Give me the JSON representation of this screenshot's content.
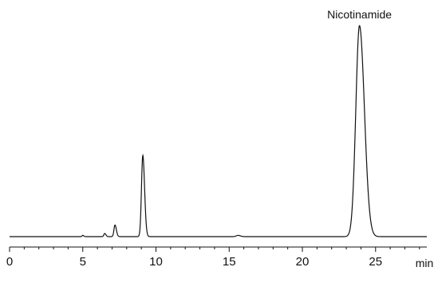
{
  "chart_data": {
    "type": "line",
    "title": "",
    "xlabel": "min",
    "ylabel": "",
    "xlim": [
      0,
      28.5
    ],
    "ylim": [
      0,
      1
    ],
    "grid": false,
    "x_ticks": [
      0,
      5,
      10,
      15,
      20,
      25
    ],
    "x_minor_step": 1,
    "series": [
      {
        "name": "",
        "peaks": [
          {
            "time": 5.0,
            "height": 0.006,
            "width": 0.05
          },
          {
            "time": 6.5,
            "height": 0.015,
            "width": 0.06
          },
          {
            "time": 7.2,
            "height": 0.055,
            "width": 0.07
          },
          {
            "time": 9.1,
            "height": 0.385,
            "width": 0.09
          },
          {
            "time": 15.6,
            "height": 0.006,
            "width": 0.12
          },
          {
            "time": 23.9,
            "height": 1.0,
            "width": 0.25
          }
        ]
      }
    ],
    "annotations": [
      {
        "text": "Nicotinamide",
        "x": 23.9
      }
    ],
    "colors": {
      "line": "#111111",
      "axis": "#111111"
    }
  }
}
